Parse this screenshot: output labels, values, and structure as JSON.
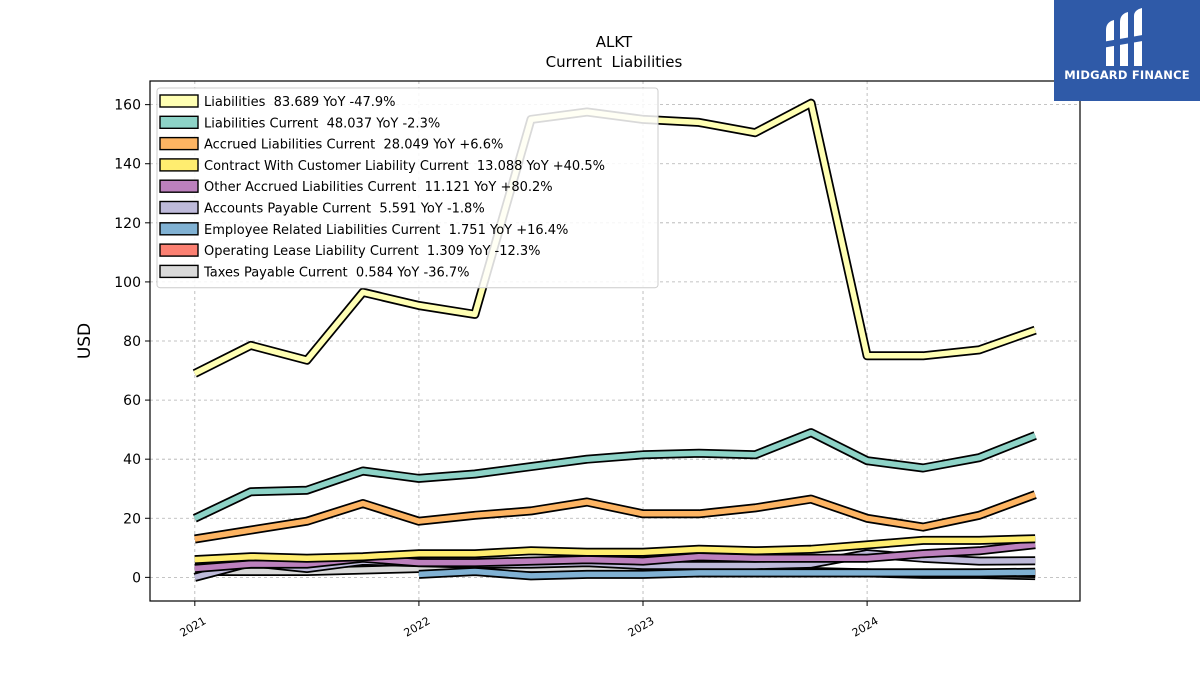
{
  "brand": {
    "name": "MIDGARD FINANCE",
    "bg_color": "#2f5aa8"
  },
  "chart_data": {
    "type": "line",
    "title": "ALKT",
    "subtitle": "Current  Liabilities",
    "xlabel": "",
    "ylabel": "USD",
    "ylim": [
      -8,
      168
    ],
    "xlim": [
      2020.8,
      2024.95
    ],
    "x_ticks": [
      2021,
      2022,
      2023,
      2024
    ],
    "x_tick_labels": [
      "2021",
      "2022",
      "2023",
      "2024"
    ],
    "y_ticks": [
      0,
      20,
      40,
      60,
      80,
      100,
      120,
      140,
      160
    ],
    "y_tick_labels": [
      "0",
      "20",
      "40",
      "60",
      "80",
      "100",
      "120",
      "140",
      "160"
    ],
    "grid": true,
    "legend_position": "top-left",
    "x": [
      2021.0,
      2021.25,
      2021.5,
      2021.75,
      2022.0,
      2022.25,
      2022.5,
      2022.75,
      2023.0,
      2023.25,
      2023.5,
      2023.75,
      2024.0,
      2024.25,
      2024.5,
      2024.75
    ],
    "series": [
      {
        "name": "Liabilities",
        "legend": "Liabilities  83.689 YoY -47.9%",
        "color": "#ffffb3",
        "values": [
          69,
          78.5,
          73.5,
          96.5,
          92,
          89,
          155,
          157.5,
          155,
          154,
          150.5,
          160.5,
          75,
          75,
          77,
          83.7
        ]
      },
      {
        "name": "Liabilities Current",
        "legend": "Liabilities Current  48.037 YoY -2.3%",
        "color": "#8dd3c7",
        "values": [
          20,
          29,
          29.5,
          36,
          33.5,
          35,
          37.5,
          40,
          41.5,
          42,
          41.5,
          49,
          39.5,
          37,
          40.5,
          48
        ]
      },
      {
        "name": "Accrued Liabilities Current",
        "legend": "Accrued Liabilities Current  28.049 YoY +6.6%",
        "color": "#fdb462",
        "values": [
          13,
          16,
          19,
          25,
          19,
          21,
          22.5,
          25.5,
          21.5,
          21.5,
          23.5,
          26.5,
          20,
          17,
          21,
          28
        ]
      },
      {
        "name": "Contract With Customer Liability Current",
        "legend": "Contract With Customer Liability Current  13.088 YoY +40.5%",
        "color": "#ffed6f",
        "values": [
          6,
          7,
          6.5,
          7,
          8,
          8,
          9,
          8.5,
          8.5,
          9.5,
          9,
          9.5,
          11,
          12.5,
          12.5,
          13.1
        ]
      },
      {
        "name": "Other Accrued Liabilities Current",
        "legend": "Other Accrued Liabilities Current  11.121 YoY +80.2%",
        "color": "#bc80bd",
        "values": [
          3,
          4.5,
          4.5,
          6.5,
          5,
          5,
          5.5,
          6,
          5.5,
          7,
          6.5,
          6.5,
          6.5,
          8,
          9,
          11.1
        ]
      },
      {
        "name": "Accounts Payable Current",
        "legend": "Accounts Payable Current  5.591 YoY -1.8%",
        "color": "#bebada",
        "values": [
          0,
          5,
          3,
          5.5,
          5,
          4.5,
          4.5,
          5,
          4,
          4,
          4,
          4.5,
          8,
          6.5,
          5.5,
          5.6
        ]
      },
      {
        "name": "Employee Related Liabilities Current",
        "legend": "Employee Related Liabilities Current  1.751 YoY +16.4%",
        "color": "#80b1d3",
        "values": [
          null,
          null,
          null,
          null,
          1,
          2,
          0.5,
          1,
          1,
          1.5,
          1.5,
          1.5,
          1.5,
          1.5,
          1.5,
          1.75
        ]
      },
      {
        "name": "Operating Lease Liability Current",
        "legend": "Operating Lease Liability Current  1.309 YoY -12.3%",
        "color": "#fb8072",
        "values": [
          null,
          null,
          null,
          null,
          null,
          null,
          null,
          null,
          4,
          3.5,
          3,
          2,
          1.5,
          1.5,
          1.5,
          1.3
        ]
      },
      {
        "name": "Taxes Payable Current",
        "legend": "Taxes Payable Current  0.584 YoY -36.7%",
        "color": "#d9d9d9",
        "values": [
          2,
          2,
          2,
          2.5,
          3,
          3,
          3,
          3,
          1.5,
          1.5,
          1.5,
          1.5,
          1.5,
          1,
          1,
          0.6
        ]
      }
    ]
  }
}
